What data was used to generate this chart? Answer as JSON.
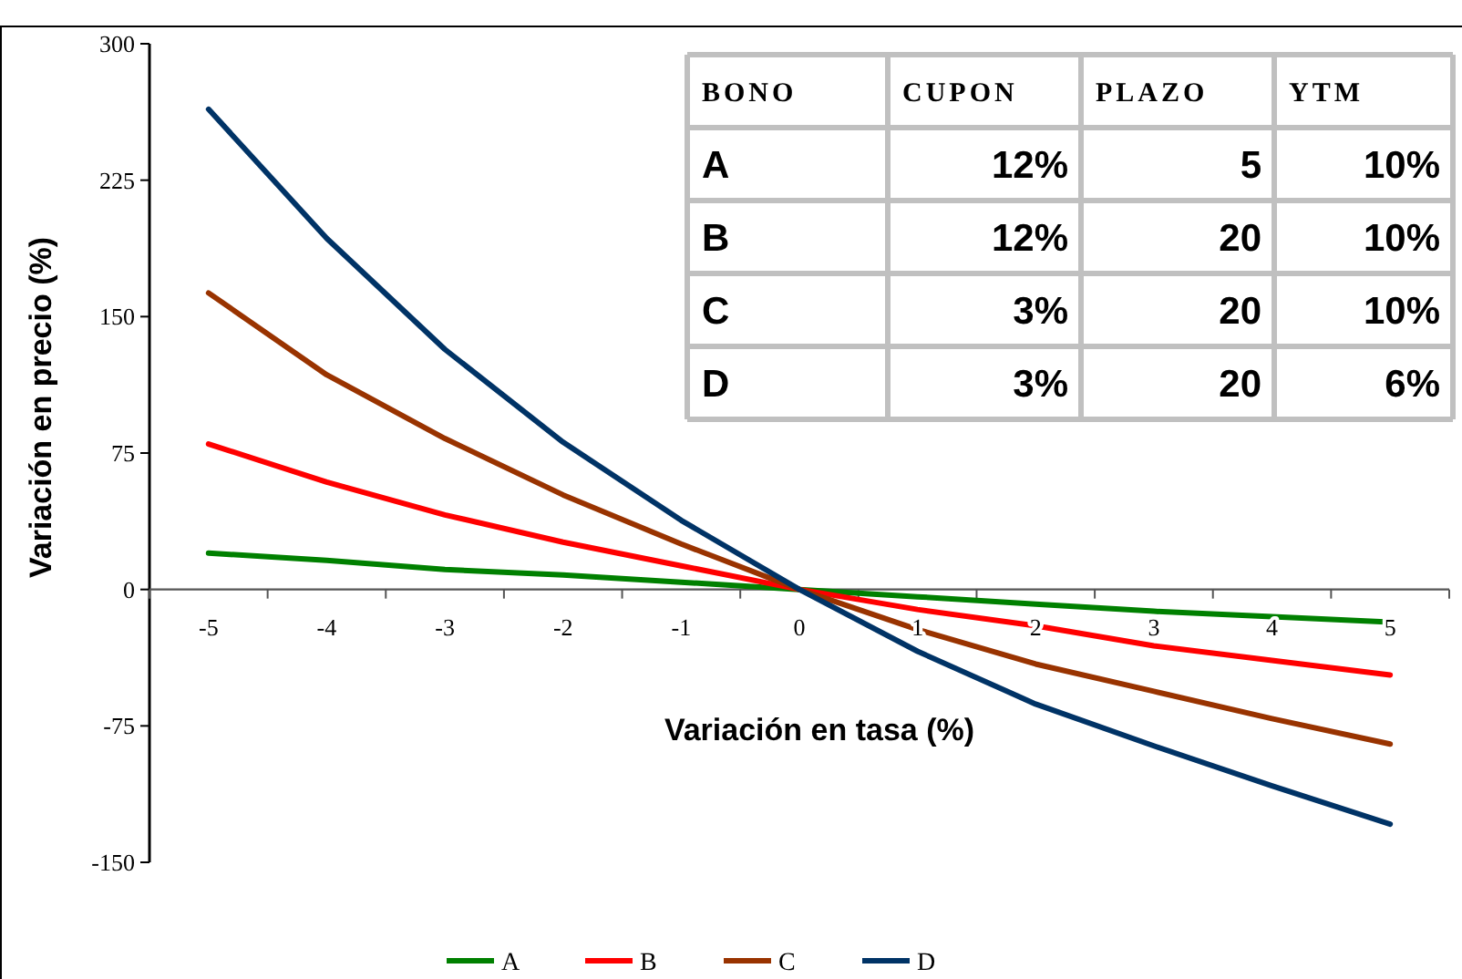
{
  "chart_data": {
    "type": "line",
    "xlabel": "Variación en tasa (%)",
    "ylabel": "Variación en precio (%)",
    "categories": [
      "-5",
      "-4",
      "-3",
      "-2",
      "-1",
      "0",
      "1",
      "2",
      "3",
      "4",
      "5"
    ],
    "ylim": [
      -150,
      300
    ],
    "yticks": [
      -150,
      -75,
      0,
      75,
      150,
      225,
      300
    ],
    "grid": false,
    "legend": "bottom",
    "marker": "none",
    "line_style": "solid",
    "series": [
      {
        "name": "A",
        "color": "#008000",
        "values": [
          20,
          16,
          11,
          8,
          4,
          0,
          -4,
          -8,
          -12,
          -15,
          -18
        ]
      },
      {
        "name": "B",
        "color": "#ff0000",
        "values": [
          80,
          59,
          41,
          26,
          13,
          0,
          -11,
          -20,
          -31,
          -39,
          -47
        ]
      },
      {
        "name": "C",
        "color": "#993300",
        "values": [
          163,
          118,
          83,
          52,
          25,
          0,
          -22,
          -41,
          -56,
          -71,
          -85
        ]
      },
      {
        "name": "D",
        "color": "#003366",
        "values": [
          264,
          193,
          132,
          81,
          38,
          0,
          -34,
          -63,
          -86,
          -108,
          -129
        ]
      }
    ],
    "annotations": [
      "BONO",
      "CUPON",
      "PLAZO",
      "YTM",
      "A",
      "12%",
      "5",
      "10%",
      "B",
      "12%",
      "20",
      "10%",
      "C",
      "3%",
      "20",
      "10%",
      "D",
      "3%",
      "20",
      "6%"
    ]
  }
}
